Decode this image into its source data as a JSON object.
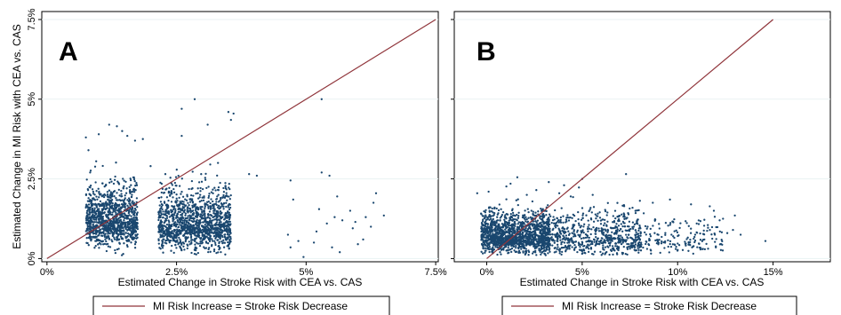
{
  "chart_data": [
    {
      "type": "scatter",
      "panel_label": "A",
      "xlabel": "Estimated Change in Stroke Risk with CEA vs. CAS",
      "ylabel": "Estimated Change in MI Risk with CEA vs. CAS",
      "xlim": [
        -0.1,
        7.55
      ],
      "ylim": [
        -0.1,
        7.75
      ],
      "x_ticks": [
        {
          "value": 0,
          "label": "0%"
        },
        {
          "value": 2.5,
          "label": "2.5%"
        },
        {
          "value": 5,
          "label": "5%"
        },
        {
          "value": 7.5,
          "label": "7.5%"
        }
      ],
      "y_ticks": [
        {
          "value": 0,
          "label": "0%"
        },
        {
          "value": 2.5,
          "label": "2.5%"
        },
        {
          "value": 5,
          "label": "5%"
        },
        {
          "value": 7.5,
          "label": "7.5%"
        }
      ],
      "grid": true,
      "reference_line": {
        "x": [
          0,
          7.5
        ],
        "y": [
          0,
          7.5
        ]
      },
      "clusters": [
        {
          "x_center": 1.25,
          "x_spread": 0.5,
          "y_center": 1.15,
          "y_spread": 0.6,
          "count": 1100
        },
        {
          "x_center": 2.85,
          "x_spread": 0.7,
          "y_center": 1.05,
          "y_spread": 0.6,
          "count": 1300
        }
      ],
      "points": [
        [
          2.6,
          4.7
        ],
        [
          2.85,
          5.0
        ],
        [
          3.1,
          4.2
        ],
        [
          3.5,
          4.6
        ],
        [
          3.55,
          4.35
        ],
        [
          3.6,
          4.55
        ],
        [
          5.3,
          5.0
        ],
        [
          4.7,
          2.45
        ],
        [
          3.9,
          2.65
        ],
        [
          4.05,
          2.6
        ],
        [
          4.75,
          1.85
        ],
        [
          4.65,
          0.75
        ],
        [
          4.85,
          0.55
        ],
        [
          4.7,
          0.35
        ],
        [
          5.2,
          0.85
        ],
        [
          5.25,
          1.55
        ],
        [
          5.4,
          1.1
        ],
        [
          5.55,
          1.3
        ],
        [
          5.65,
          0.2
        ],
        [
          5.85,
          1.5
        ],
        [
          5.9,
          0.95
        ],
        [
          6.1,
          0.6
        ],
        [
          6.15,
          1.3
        ],
        [
          6.3,
          1.75
        ],
        [
          5.7,
          1.2
        ],
        [
          5.95,
          1.15
        ],
        [
          6.25,
          1.0
        ],
        [
          6.0,
          0.45
        ],
        [
          5.3,
          2.7
        ],
        [
          5.45,
          2.6
        ],
        [
          5.15,
          0.5
        ],
        [
          4.95,
          0.05
        ],
        [
          5.5,
          0.35
        ],
        [
          5.6,
          1.95
        ],
        [
          6.35,
          2.05
        ],
        [
          6.5,
          1.35
        ],
        [
          0.75,
          3.8
        ],
        [
          0.8,
          3.4
        ],
        [
          1.0,
          3.9
        ],
        [
          1.2,
          4.2
        ],
        [
          1.35,
          4.15
        ],
        [
          1.45,
          4.0
        ],
        [
          1.55,
          3.85
        ],
        [
          1.7,
          3.7
        ],
        [
          1.85,
          3.75
        ],
        [
          0.95,
          3.05
        ],
        [
          2.0,
          2.9
        ],
        [
          2.6,
          3.85
        ],
        [
          3.3,
          3.0
        ],
        [
          3.15,
          2.95
        ]
      ],
      "marker_color": "#1a476f",
      "line_color": "#90353b"
    },
    {
      "type": "scatter",
      "panel_label": "B",
      "xlabel": "Estimated Change in Stroke Risk with CEA vs. CAS",
      "ylabel": "",
      "xlim": [
        -1.7,
        18.0
      ],
      "ylim": [
        -0.1,
        7.75
      ],
      "x_ticks": [
        {
          "value": 0,
          "label": "0%"
        },
        {
          "value": 5,
          "label": "5%"
        },
        {
          "value": 10,
          "label": "10%"
        },
        {
          "value": 15,
          "label": "15%"
        }
      ],
      "y_ticks": [
        {
          "value": 0,
          "label": ""
        },
        {
          "value": 2.5,
          "label": ""
        },
        {
          "value": 5,
          "label": ""
        },
        {
          "value": 7.5,
          "label": ""
        }
      ],
      "grid": true,
      "reference_line": {
        "x": [
          0,
          15
        ],
        "y": [
          0,
          7.5
        ]
      },
      "clusters": [
        {
          "x_center": 1.5,
          "x_spread": 1.8,
          "y_center": 0.7,
          "y_spread": 0.4,
          "count": 1400
        },
        {
          "x_center": 5.5,
          "x_spread": 2.6,
          "y_center": 0.65,
          "y_spread": 0.45,
          "count": 700
        },
        {
          "x_center": 10.0,
          "x_spread": 2.4,
          "y_center": 0.6,
          "y_spread": 0.4,
          "count": 180
        }
      ],
      "points": [
        [
          14.6,
          0.55
        ],
        [
          12.6,
          0.8
        ],
        [
          12.9,
          0.9
        ],
        [
          12.2,
          1.2
        ],
        [
          13.0,
          1.35
        ],
        [
          11.9,
          1.5
        ],
        [
          12.0,
          0.35
        ],
        [
          11.4,
          0.6
        ],
        [
          13.3,
          0.75
        ],
        [
          7.3,
          2.65
        ],
        [
          5.0,
          2.5
        ],
        [
          3.8,
          2.05
        ],
        [
          4.4,
          1.95
        ],
        [
          5.55,
          2.0
        ],
        [
          3.25,
          2.4
        ],
        [
          4.05,
          2.3
        ],
        [
          -0.5,
          2.05
        ],
        [
          0.1,
          2.1
        ],
        [
          1.25,
          2.35
        ],
        [
          2.1,
          2.0
        ],
        [
          2.6,
          2.15
        ],
        [
          1.6,
          2.55
        ],
        [
          10.7,
          1.7
        ],
        [
          9.6,
          1.85
        ],
        [
          8.7,
          1.75
        ],
        [
          11.0,
          1.1
        ],
        [
          9.9,
          0.3
        ],
        [
          8.6,
          0.25
        ]
      ],
      "marker_color": "#1a476f",
      "line_color": "#90353b"
    }
  ],
  "legends": [
    {
      "label": "MI Risk Increase = Stroke Risk Decrease",
      "color": "#90353b"
    },
    {
      "label": "MI Risk Increase = Stroke Risk Decrease",
      "color": "#90353b"
    }
  ]
}
